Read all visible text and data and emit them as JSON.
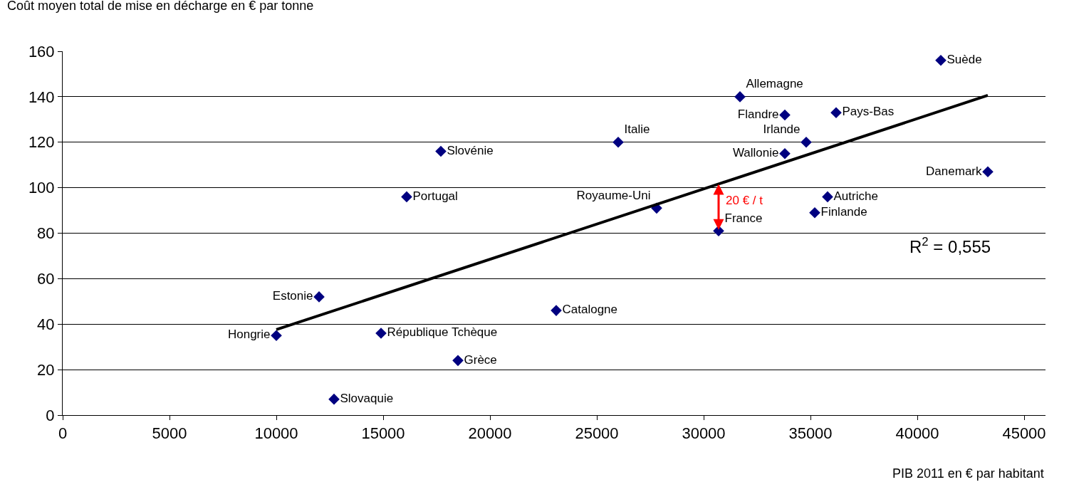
{
  "chart_data": {
    "type": "scatter",
    "xlabel": "PIB 2011 en € par habitant",
    "ylabel": "Coût moyen total de mise en décharge en € par tonne",
    "xlim": [
      0,
      46000
    ],
    "xticks": [
      0,
      5000,
      10000,
      15000,
      20000,
      25000,
      30000,
      35000,
      40000,
      45000
    ],
    "ylim": [
      0,
      160
    ],
    "yticks": [
      0,
      20,
      40,
      60,
      80,
      100,
      120,
      140,
      160
    ],
    "grid": "y",
    "legend": false,
    "marker": "diamond",
    "series": [
      {
        "name": "Hongrie",
        "color": "#000080",
        "x": [
          10000
        ],
        "values": [
          35
        ]
      },
      {
        "name": "Estonie",
        "color": "#000080",
        "x": [
          12000
        ],
        "values": [
          52
        ]
      },
      {
        "name": "Slovaquie",
        "color": "#000080",
        "x": [
          12700
        ],
        "values": [
          7
        ]
      },
      {
        "name": "République Tchèque",
        "color": "#000080",
        "x": [
          14900
        ],
        "values": [
          36
        ]
      },
      {
        "name": "Grèce",
        "color": "#000080",
        "x": [
          18500
        ],
        "values": [
          24
        ]
      },
      {
        "name": "Portugal",
        "color": "#000080",
        "x": [
          16100
        ],
        "values": [
          96
        ]
      },
      {
        "name": "Slovénie",
        "color": "#000080",
        "x": [
          17700
        ],
        "values": [
          116
        ]
      },
      {
        "name": "Catalogne",
        "color": "#000080",
        "x": [
          23100
        ],
        "values": [
          46
        ]
      },
      {
        "name": "Italie",
        "color": "#000080",
        "x": [
          26000
        ],
        "values": [
          120
        ]
      },
      {
        "name": "Royaume-Uni",
        "color": "#000080",
        "x": [
          27800
        ],
        "values": [
          91
        ]
      },
      {
        "name": "France",
        "color": "#000080",
        "x": [
          30700
        ],
        "values": [
          81
        ]
      },
      {
        "name": "Allemagne",
        "color": "#000080",
        "x": [
          31700
        ],
        "values": [
          140
        ]
      },
      {
        "name": "Flandre",
        "color": "#000080",
        "x": [
          33800
        ],
        "values": [
          132
        ]
      },
      {
        "name": "Wallonie",
        "color": "#000080",
        "x": [
          33800
        ],
        "values": [
          115
        ]
      },
      {
        "name": "Irlande",
        "color": "#000080",
        "x": [
          34800
        ],
        "values": [
          120
        ]
      },
      {
        "name": "Pays-Bas",
        "color": "#000080",
        "x": [
          36200
        ],
        "values": [
          133
        ]
      },
      {
        "name": "Autriche",
        "color": "#000080",
        "x": [
          35800
        ],
        "values": [
          96
        ]
      },
      {
        "name": "Finlande",
        "color": "#000080",
        "x": [
          35200
        ],
        "values": [
          89
        ]
      },
      {
        "name": "Suède",
        "color": "#000080",
        "x": [
          41100
        ],
        "values": [
          156
        ]
      },
      {
        "name": "Danemark",
        "color": "#000080",
        "x": [
          43300
        ],
        "values": [
          107
        ]
      },
      {
        "type": "line",
        "color": "#000000",
        "x": [
          10000,
          43300
        ],
        "values": [
          37.6,
          140.6
        ],
        "marker": "none"
      }
    ],
    "annotations": [
      {
        "text": "20 € / t",
        "x": 30700,
        "y": 81
      },
      "R$^{2}$ = 0,555"
    ]
  }
}
